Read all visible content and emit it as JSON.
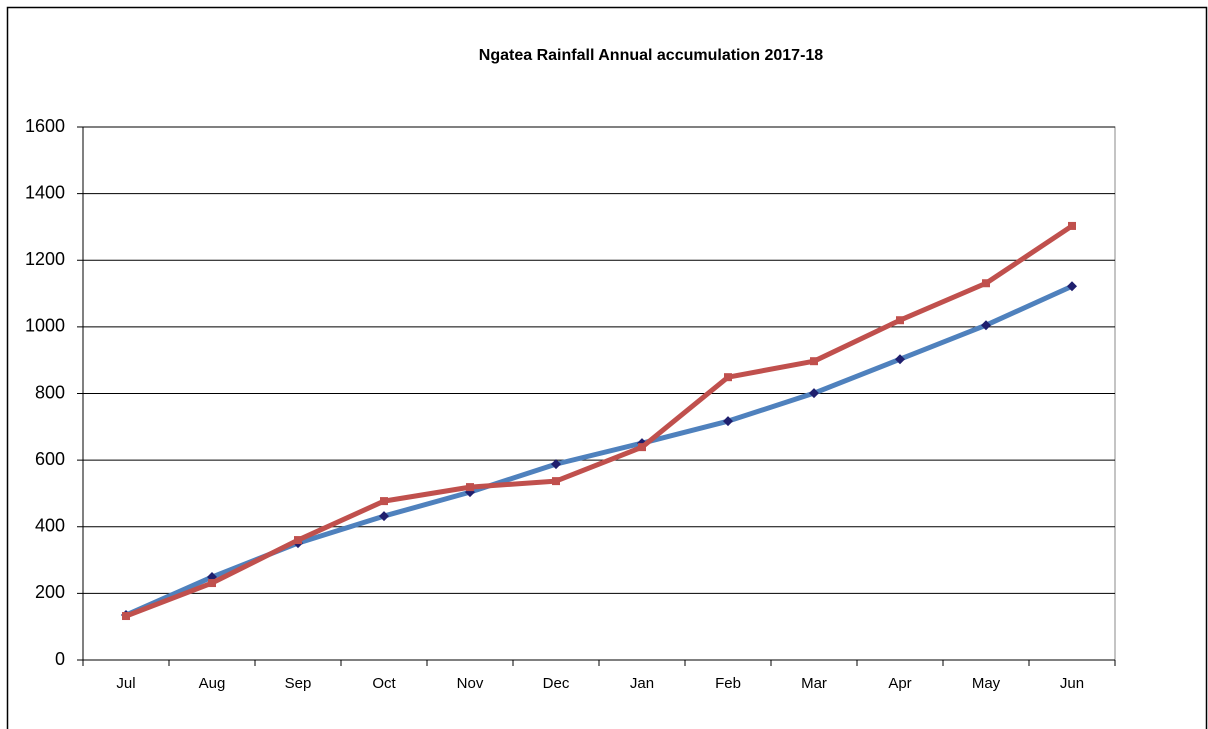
{
  "chart_data": {
    "type": "line",
    "title": "Ngatea Rainfall Annual accumulation 2017-18",
    "categories": [
      "Jul",
      "Aug",
      "Sep",
      "Oct",
      "Nov",
      "Dec",
      "Jan",
      "Feb",
      "Mar",
      "Apr",
      "May",
      "Jun"
    ],
    "series": [
      {
        "color": "#4f81bd",
        "marker": "diamond",
        "marker_color": "#1f1f6e",
        "values": [
          135,
          249,
          351,
          432,
          504,
          588,
          651,
          717,
          801,
          903,
          1005,
          1122
        ]
      },
      {
        "color": "#c0504d",
        "marker": "square",
        "marker_color": "#c0504d",
        "values": [
          132,
          231,
          360,
          477,
          519,
          537,
          639,
          849,
          897,
          1020,
          1131,
          1303
        ]
      }
    ],
    "ylim": [
      0,
      1600
    ],
    "yticks": [
      0,
      200,
      400,
      600,
      800,
      1000,
      1200,
      1400,
      1600
    ],
    "grid": true
  }
}
